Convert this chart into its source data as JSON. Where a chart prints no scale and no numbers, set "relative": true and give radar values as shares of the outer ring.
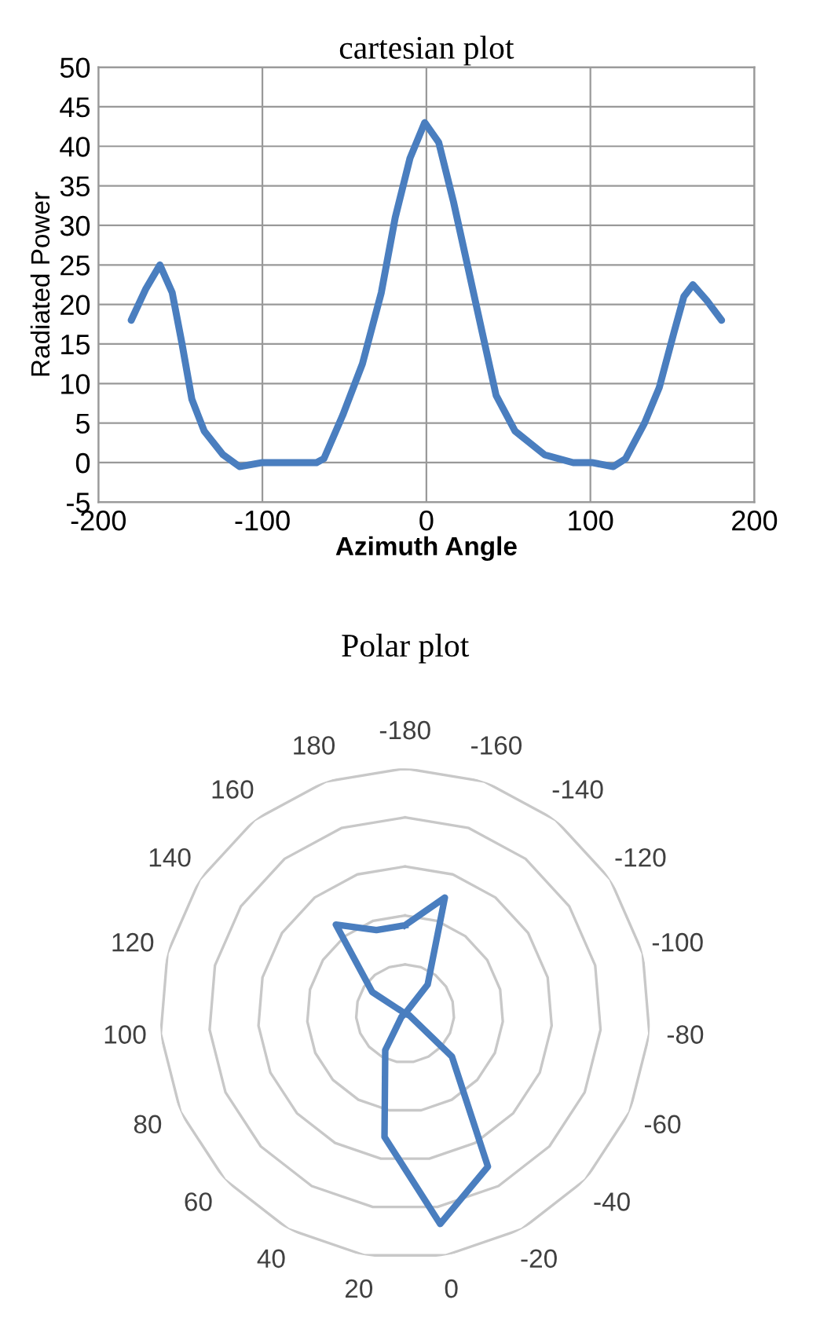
{
  "chart_data": [
    {
      "type": "line",
      "title": "cartesian plot",
      "xlabel": "Azimuth Angle",
      "ylabel": "Radiated Power",
      "xlim": [
        -200,
        200
      ],
      "xticks": [
        -200,
        -100,
        0,
        100,
        200
      ],
      "ylim": [
        -5,
        50
      ],
      "yticks": [
        -5,
        0,
        5,
        10,
        15,
        20,
        25,
        30,
        35,
        40,
        45,
        50
      ],
      "grid": true,
      "legend": false,
      "marker": "none",
      "line_style": "solid",
      "series": [
        {
          "color": "#4a7ebf",
          "x": [
            -180,
            -171,
            -162.5,
            -155,
            -149,
            -143,
            -135.5,
            -124,
            -114,
            -100,
            -80,
            -67,
            -62.5,
            -51,
            -39,
            -27.5,
            -19,
            -10,
            -1,
            7.5,
            16.5,
            25,
            34,
            42.5,
            54,
            72,
            89.5,
            101,
            114,
            121.5,
            133,
            142,
            151,
            157,
            162.5,
            171,
            180
          ],
          "values": [
            18,
            22,
            25,
            21.5,
            15,
            8,
            4,
            1,
            -0.5,
            0,
            0,
            0,
            0.5,
            6,
            12.5,
            21.5,
            31,
            38.5,
            43,
            40.5,
            33,
            25,
            16.5,
            8.5,
            4,
            1,
            0,
            0,
            -0.5,
            0.5,
            5,
            9.5,
            16.5,
            21,
            22.5,
            20.5,
            18
          ]
        }
      ]
    },
    {
      "type": "radar",
      "title": "Polar plot",
      "relative": true,
      "grid": true,
      "legend": false,
      "marker": "none",
      "line_style": "solid",
      "categories": [
        "-180",
        "-160",
        "-140",
        "-120",
        "-100",
        "-80",
        "-60",
        "-40",
        "-20",
        "0",
        "20",
        "40",
        "60",
        "80",
        "100",
        "120",
        "140",
        "160",
        "180"
      ],
      "series": [
        {
          "color": "#4a7ebf",
          "values": [
            0.36,
            0.5,
            0.15,
            0,
            0,
            0,
            0.02,
            0.26,
            0.71,
            0.87,
            0.51,
            0.17,
            0.02,
            0,
            0,
            0,
            0.16,
            0.46,
            0.36
          ]
        }
      ]
    }
  ]
}
